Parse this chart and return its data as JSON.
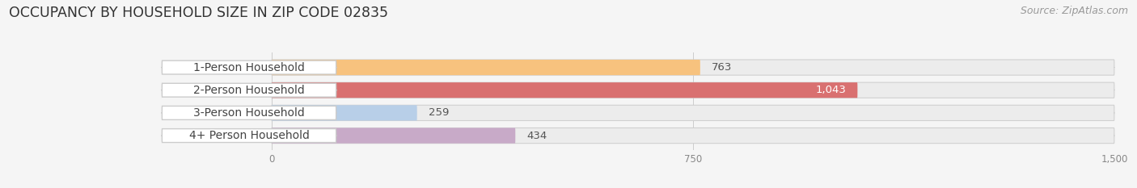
{
  "title": "OCCUPANCY BY HOUSEHOLD SIZE IN ZIP CODE 02835",
  "source": "Source: ZipAtlas.com",
  "categories": [
    "1-Person Household",
    "2-Person Household",
    "3-Person Household",
    "4+ Person Household"
  ],
  "values": [
    763,
    1043,
    259,
    434
  ],
  "bar_colors": [
    "#f7c27e",
    "#d97070",
    "#b8cfe8",
    "#c8aac8"
  ],
  "bar_edge_colors": [
    "#daa040",
    "#bb4444",
    "#8aaaca",
    "#a880a8"
  ],
  "label_colors": [
    "#444444",
    "#444444",
    "#444444",
    "#444444"
  ],
  "value_label_colors": [
    "#555555",
    "#ffffff",
    "#555555",
    "#555555"
  ],
  "xlim": [
    -200,
    1500
  ],
  "data_xlim": [
    0,
    1500
  ],
  "xticks": [
    0,
    750,
    1500
  ],
  "background_color": "#f5f5f5",
  "bar_background_color": "#ececec",
  "title_fontsize": 12.5,
  "source_fontsize": 9,
  "label_fontsize": 10,
  "value_fontsize": 9.5
}
